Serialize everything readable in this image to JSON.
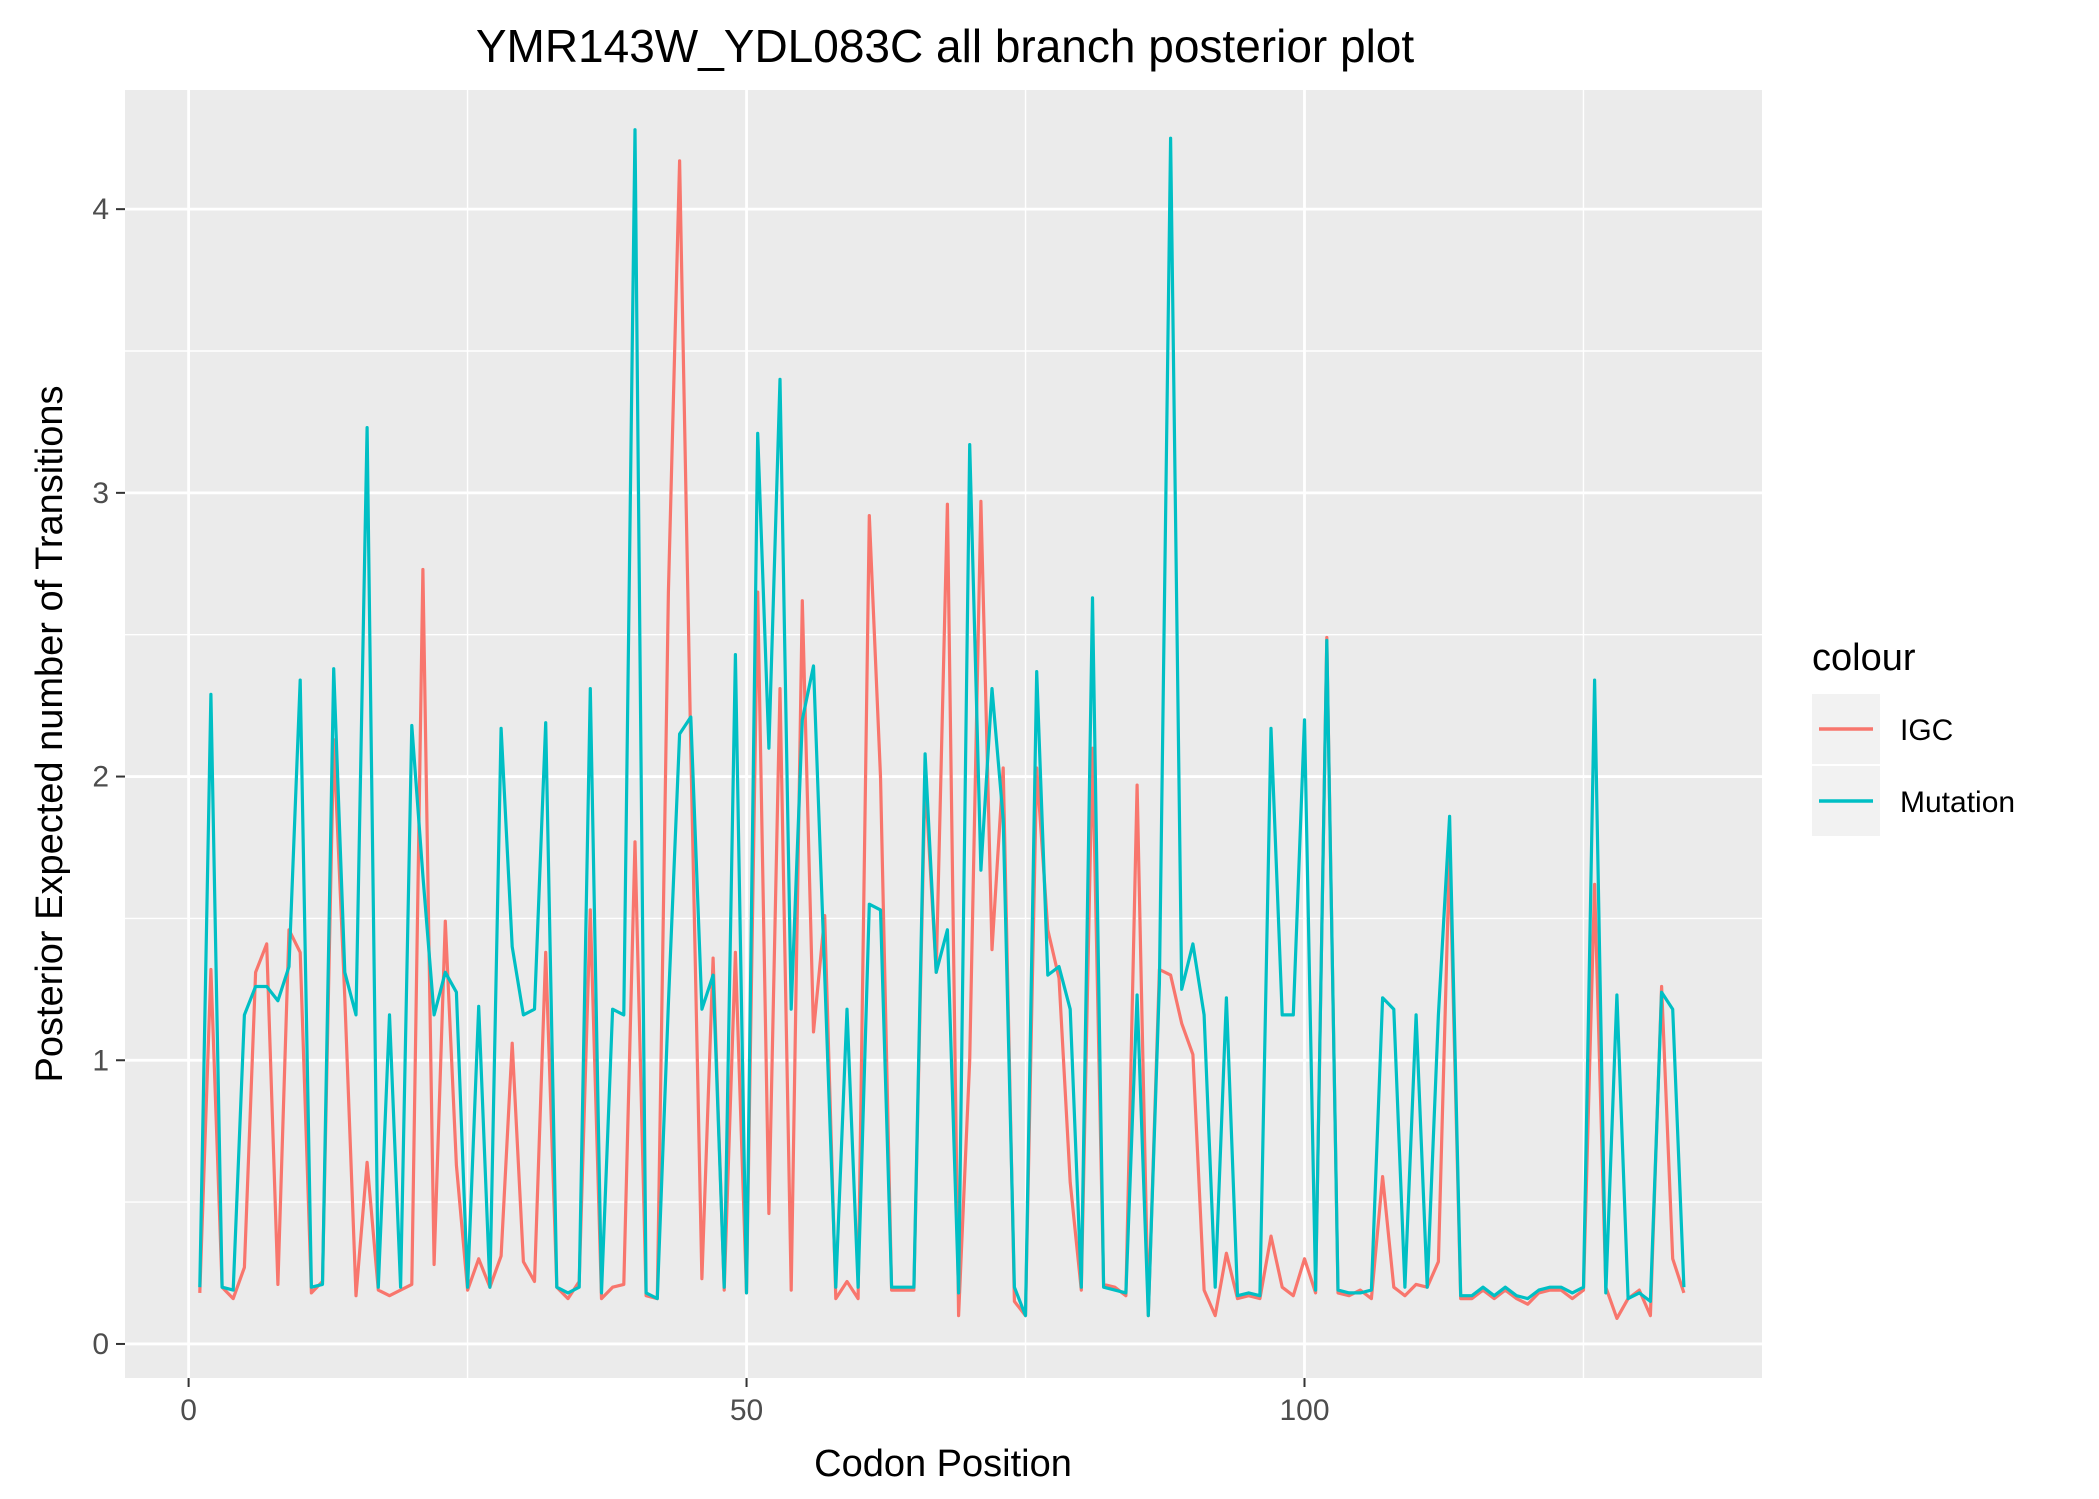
{
  "chart_data": {
    "type": "line",
    "title": "YMR143W_YDL083C all branch posterior plot",
    "xlabel": "Codon Position",
    "ylabel": "Posterior Expected number of Transitions",
    "xlim": [
      -5.7,
      141
    ],
    "ylim": [
      -0.12,
      4.42
    ],
    "xticks": [
      0,
      50,
      100
    ],
    "yticks": [
      0,
      1,
      2,
      3,
      4
    ],
    "xtick_labels": [
      "0",
      "50",
      "100"
    ],
    "ytick_labels": [
      "0",
      "1",
      "2",
      "3",
      "4"
    ],
    "grid": true,
    "legend": {
      "title": "colour",
      "position": "right"
    },
    "series": [
      {
        "name": "IGC",
        "color": "#F8766D",
        "x": [
          1,
          2,
          3,
          4,
          5,
          6,
          7,
          8,
          9,
          10,
          11,
          12,
          13,
          14,
          15,
          16,
          17,
          18,
          19,
          20,
          21,
          22,
          23,
          24,
          25,
          26,
          27,
          28,
          29,
          30,
          31,
          32,
          33,
          34,
          35,
          36,
          37,
          38,
          39,
          40,
          41,
          42,
          43,
          44,
          45,
          46,
          47,
          48,
          49,
          50,
          51,
          52,
          53,
          54,
          55,
          56,
          57,
          58,
          59,
          60,
          61,
          62,
          63,
          64,
          65,
          66,
          67,
          68,
          69,
          70,
          71,
          72,
          73,
          74,
          75,
          76,
          77,
          78,
          79,
          80,
          81,
          82,
          83,
          84,
          85,
          86,
          87,
          88,
          89,
          90,
          91,
          92,
          93,
          94,
          95,
          96,
          97,
          98,
          99,
          100,
          101,
          102,
          103,
          104,
          105,
          106,
          107,
          108,
          109,
          110,
          111,
          112,
          113,
          114,
          115,
          116,
          117,
          118,
          119,
          120,
          121,
          122,
          123,
          124,
          125,
          126,
          127,
          128,
          129,
          130,
          131,
          132,
          133,
          134
        ],
        "values": [
          0.18,
          1.32,
          0.2,
          0.16,
          0.27,
          1.31,
          1.41,
          0.21,
          1.46,
          1.38,
          0.18,
          0.22,
          2.13,
          1.22,
          0.17,
          0.64,
          0.19,
          0.17,
          0.19,
          0.21,
          2.73,
          0.28,
          1.49,
          0.63,
          0.19,
          0.3,
          0.2,
          0.31,
          1.06,
          0.29,
          0.22,
          1.38,
          0.2,
          0.16,
          0.22,
          1.53,
          0.16,
          0.2,
          0.21,
          1.77,
          0.17,
          0.16,
          2.65,
          4.17,
          2.1,
          0.23,
          1.36,
          0.19,
          1.38,
          0.18,
          2.65,
          0.46,
          2.31,
          0.19,
          2.62,
          1.1,
          1.51,
          0.16,
          0.22,
          0.16,
          2.92,
          2.0,
          0.19,
          0.19,
          0.19,
          2.0,
          1.31,
          2.96,
          0.1,
          1.0,
          2.97,
          1.39,
          2.03,
          0.15,
          0.1,
          2.03,
          1.46,
          1.29,
          0.57,
          0.19,
          2.1,
          0.21,
          0.2,
          0.17,
          1.97,
          0.1,
          1.32,
          1.3,
          1.13,
          1.02,
          0.19,
          0.1,
          0.32,
          0.16,
          0.17,
          0.16,
          0.38,
          0.2,
          0.17,
          0.3,
          0.18,
          2.49,
          0.18,
          0.17,
          0.19,
          0.16,
          0.59,
          0.2,
          0.17,
          0.21,
          0.2,
          0.29,
          1.74,
          0.16,
          0.16,
          0.19,
          0.16,
          0.19,
          0.16,
          0.14,
          0.18,
          0.19,
          0.19,
          0.16,
          0.19,
          1.62,
          0.2,
          0.09,
          0.16,
          0.19,
          0.1,
          1.26,
          0.3,
          0.18
        ]
      },
      {
        "name": "Mutation",
        "color": "#00BFC4",
        "x": [
          1,
          2,
          3,
          4,
          5,
          6,
          7,
          8,
          9,
          10,
          11,
          12,
          13,
          14,
          15,
          16,
          17,
          18,
          19,
          20,
          21,
          22,
          23,
          24,
          25,
          26,
          27,
          28,
          29,
          30,
          31,
          32,
          33,
          34,
          35,
          36,
          37,
          38,
          39,
          40,
          41,
          42,
          43,
          44,
          45,
          46,
          47,
          48,
          49,
          50,
          51,
          52,
          53,
          54,
          55,
          56,
          57,
          58,
          59,
          60,
          61,
          62,
          63,
          64,
          65,
          66,
          67,
          68,
          69,
          70,
          71,
          72,
          73,
          74,
          75,
          76,
          77,
          78,
          79,
          80,
          81,
          82,
          83,
          84,
          85,
          86,
          87,
          88,
          89,
          90,
          91,
          92,
          93,
          94,
          95,
          96,
          97,
          98,
          99,
          100,
          101,
          102,
          103,
          104,
          105,
          106,
          107,
          108,
          109,
          110,
          111,
          112,
          113,
          114,
          115,
          116,
          117,
          118,
          119,
          120,
          121,
          122,
          123,
          124,
          125,
          126,
          127,
          128,
          129,
          130,
          131,
          132,
          133,
          134
        ],
        "values": [
          0.2,
          2.29,
          0.2,
          0.19,
          1.16,
          1.26,
          1.26,
          1.21,
          1.33,
          2.34,
          0.2,
          0.21,
          2.38,
          1.31,
          1.16,
          3.23,
          0.2,
          1.16,
          0.2,
          2.18,
          1.65,
          1.16,
          1.31,
          1.24,
          0.2,
          1.19,
          0.2,
          2.17,
          1.4,
          1.16,
          1.18,
          2.19,
          0.2,
          0.18,
          0.2,
          2.31,
          0.18,
          1.18,
          1.16,
          4.28,
          0.18,
          0.16,
          1.2,
          2.15,
          2.21,
          1.18,
          1.3,
          0.2,
          2.43,
          0.18,
          3.21,
          2.1,
          3.4,
          1.18,
          2.2,
          2.39,
          1.3,
          0.2,
          1.18,
          0.2,
          1.55,
          1.53,
          0.2,
          0.2,
          0.2,
          2.08,
          1.31,
          1.46,
          0.18,
          3.17,
          1.67,
          2.31,
          1.85,
          0.2,
          0.1,
          2.37,
          1.3,
          1.33,
          1.18,
          0.2,
          2.63,
          0.2,
          0.19,
          0.18,
          1.23,
          0.1,
          1.27,
          4.25,
          1.25,
          1.41,
          1.16,
          0.2,
          1.22,
          0.17,
          0.18,
          0.17,
          2.17,
          1.16,
          1.16,
          2.2,
          0.19,
          2.48,
          0.19,
          0.18,
          0.18,
          0.19,
          1.22,
          1.18,
          0.2,
          1.16,
          0.2,
          1.16,
          1.86,
          0.17,
          0.17,
          0.2,
          0.17,
          0.2,
          0.17,
          0.16,
          0.19,
          0.2,
          0.2,
          0.18,
          0.2,
          2.34,
          0.18,
          1.23,
          0.16,
          0.18,
          0.15,
          1.24,
          1.18,
          0.2
        ]
      }
    ]
  }
}
